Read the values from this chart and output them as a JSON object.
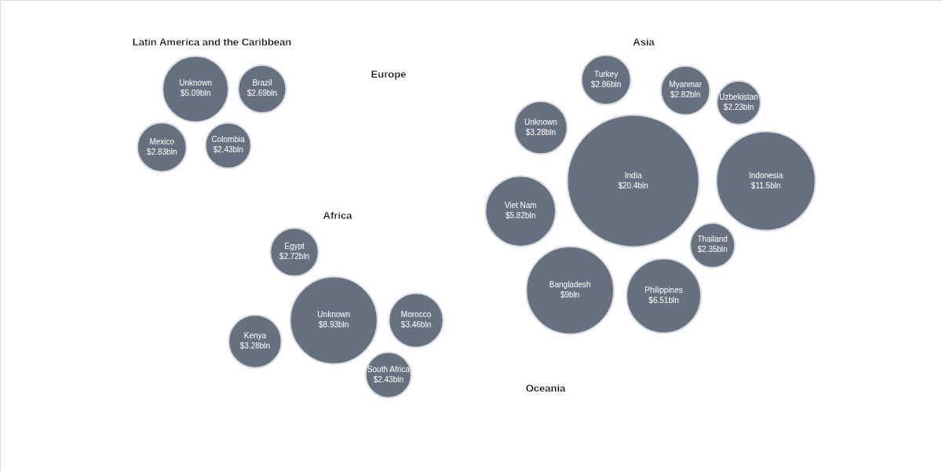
{
  "chart_data": [
    {
      "type": "other",
      "title": "Latin America and the Caribbean",
      "color": "#67707e",
      "categories": [
        "Unknown",
        "Mexico",
        "Brazil",
        "Colombia"
      ],
      "values": [
        5.09,
        2.83,
        2.69,
        2.43
      ],
      "value_labels": [
        "$5.09bln",
        "$2.83bln",
        "$2.69bln",
        "$2.43bln"
      ]
    },
    {
      "type": "other",
      "title": "Europe"
    },
    {
      "type": "other",
      "title": "Asia",
      "color": "#67707e",
      "categories": [
        "India",
        "Indonesia",
        "Bangladesh",
        "Philippines",
        "Viet Nam",
        "Unknown",
        "Turkey",
        "Myanmar",
        "Thailand",
        "Uzbekistan"
      ],
      "values": [
        20.4,
        11.5,
        9,
        6.51,
        5.82,
        3.28,
        2.86,
        2.82,
        2.35,
        2.23
      ],
      "value_labels": [
        "$20.4bln",
        "$11.5bln",
        "$9bln",
        "$6.51bln",
        "$5.82bln",
        "$3.28bln",
        "$2.86bln",
        "$2.82bln",
        "$2.35bln",
        "$2.23bln"
      ]
    },
    {
      "type": "other",
      "title": "Africa",
      "color": "#67707e",
      "categories": [
        "Unknown",
        "Morocco",
        "Kenya",
        "Egypt",
        "South Africa"
      ],
      "values": [
        8.93,
        3.46,
        3.28,
        2.72,
        2.43
      ],
      "value_labels": [
        "$8.93bln",
        "$3.46bln",
        "$3.28bln",
        "$2.72bln",
        "$2.43bln"
      ]
    },
    {
      "type": "other",
      "title": "Oceania"
    }
  ]
}
